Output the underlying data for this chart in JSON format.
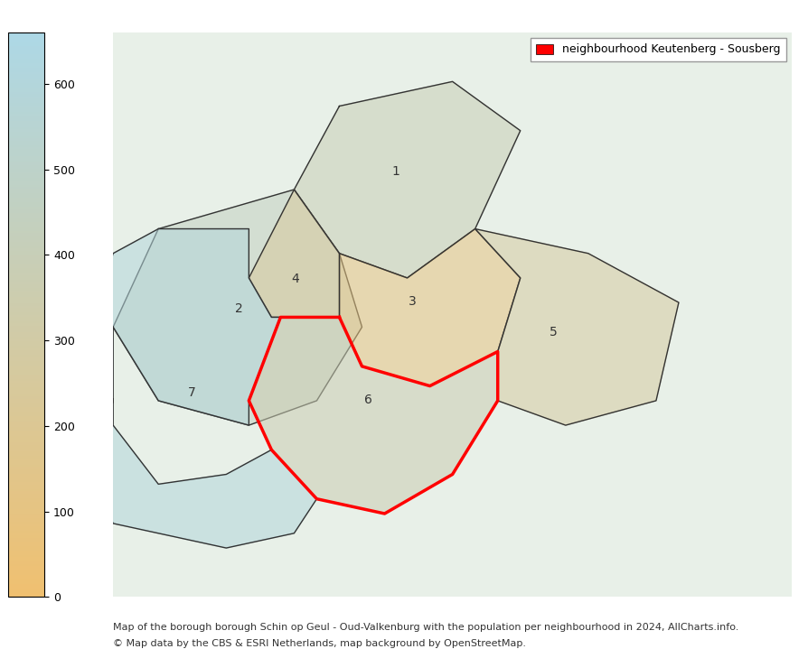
{
  "title": "neighbourhood Keutenberg - Sousberg",
  "caption_line1": "Map of the borough borough Schin op Geul - Oud-Valkenburg with the population per neighbourhood in 2024, AllCharts.info.",
  "caption_line2": "© Map data by the CBS & ESRI Netherlands, map background by OpenStreetMap.",
  "colorbar_min": 0,
  "colorbar_max": 660,
  "colorbar_ticks": [
    0,
    100,
    200,
    300,
    400,
    500,
    600
  ],
  "colorbar_color_bottom": "#f0c070",
  "colorbar_color_top": "#add8e6",
  "legend_rect_color": "#ff0000",
  "legend_text": "neighbourhood Keutenberg - Sousberg",
  "map_background": "#f0efe9",
  "fig_width": 8.94,
  "fig_height": 7.19,
  "dpi": 100,
  "neighbourhoods": {
    "1": {
      "label": "1",
      "color": "#e8c878",
      "population": 390
    },
    "2": {
      "label": "2",
      "color": "#e8c878",
      "population": 450
    },
    "3": {
      "label": "3",
      "color": "#b8d4e8",
      "population": 100
    },
    "4": {
      "label": "4",
      "color": "#d4c098",
      "population": 250
    },
    "5": {
      "label": "5",
      "color": "#d8c898",
      "population": 280
    },
    "6": {
      "label": "6",
      "color": "#e8c878",
      "population": 370,
      "highlighted": true
    },
    "7": {
      "label": "7",
      "color": "#e0bc70",
      "population": 600
    }
  },
  "image_path": null,
  "use_static_image": true,
  "map_extent": [
    5.82,
    5.95,
    50.82,
    50.91
  ]
}
